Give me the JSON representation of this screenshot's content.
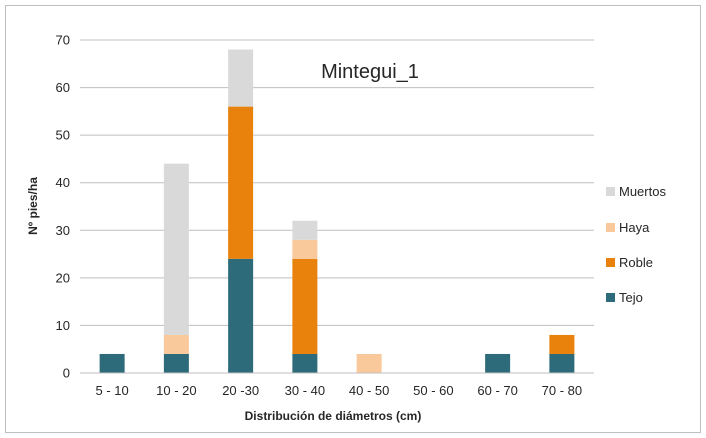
{
  "chart_data": {
    "type": "bar",
    "stacked": true,
    "title": "Mintegui_1",
    "xlabel": "Distribución de diámetros (cm)",
    "ylabel": "Nº pies/ha",
    "ylim": [
      0,
      70
    ],
    "yticks": [
      0,
      10,
      20,
      30,
      40,
      50,
      60,
      70
    ],
    "grid": true,
    "legend_position": "right",
    "categories": [
      "5 - 10",
      "10 - 20",
      "20 -30",
      "30 - 40",
      "40 - 50",
      "50 - 60",
      "60 - 70",
      "70 - 80"
    ],
    "series": [
      {
        "name": "Tejo",
        "color": "#2e6b7a",
        "values": [
          4,
          4,
          24,
          4,
          0,
          0,
          4,
          4
        ]
      },
      {
        "name": "Roble",
        "color": "#e8820c",
        "values": [
          0,
          0,
          32,
          20,
          0,
          0,
          0,
          4
        ]
      },
      {
        "name": "Haya",
        "color": "#f9c89b",
        "values": [
          0,
          4,
          0,
          4,
          4,
          0,
          0,
          0
        ]
      },
      {
        "name": "Muertos",
        "color": "#d9d9d9",
        "values": [
          0,
          36,
          12,
          4,
          0,
          0,
          0,
          0
        ]
      }
    ]
  }
}
